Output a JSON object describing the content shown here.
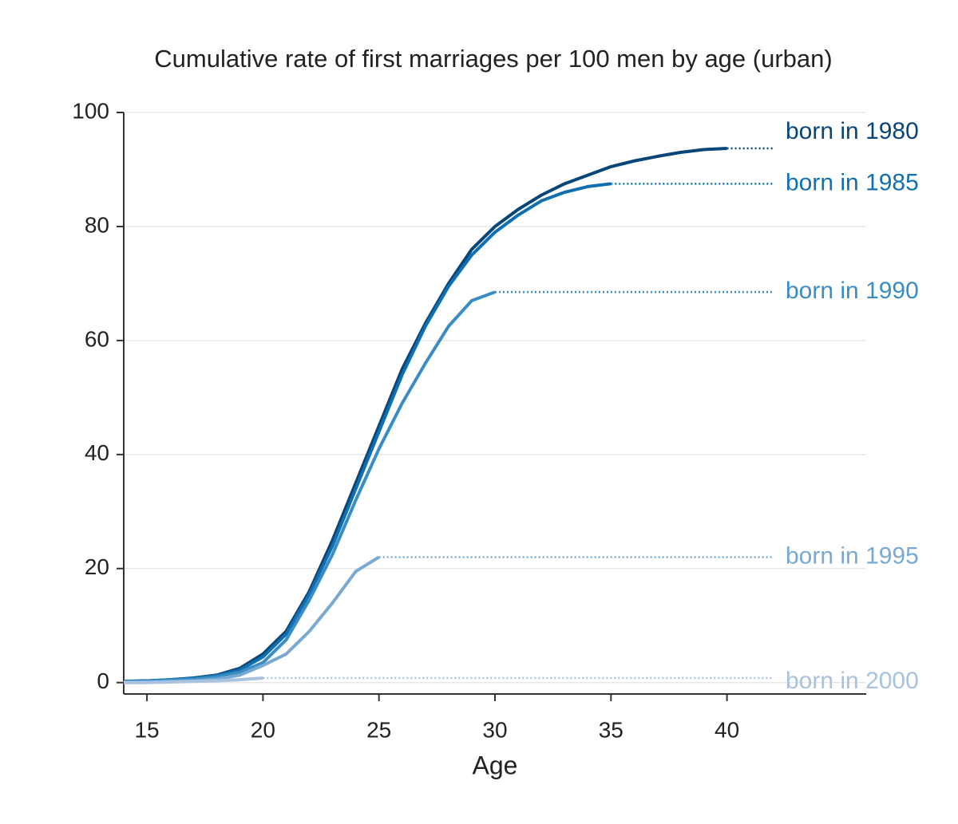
{
  "chart_data": {
    "type": "line",
    "title": "Cumulative rate of first marriages per 100 men by age (urban)",
    "x_label": "Age",
    "x": [
      14,
      15,
      16,
      17,
      18,
      19,
      20,
      21,
      22,
      23,
      24,
      25,
      26,
      27,
      28,
      29,
      30,
      31,
      32,
      33,
      34,
      35,
      36,
      37,
      38,
      39,
      40
    ],
    "series": [
      {
        "name": "born in 1980",
        "color": "#08467a",
        "values": [
          0.2,
          0.3,
          0.5,
          0.8,
          1.3,
          2.5,
          5,
          9,
          16,
          25,
          35,
          45,
          55,
          63,
          70,
          76,
          80,
          83,
          85.5,
          87.5,
          89,
          90.5,
          91.5,
          92.3,
          93,
          93.5,
          93.7
        ]
      },
      {
        "name": "born in 1985",
        "color": "#0f6fb0",
        "values": [
          0.2,
          0.3,
          0.5,
          0.7,
          1.2,
          2.2,
          4.5,
          8.5,
          15.5,
          24,
          34,
          44,
          54,
          62.5,
          69.5,
          75,
          79,
          82,
          84.5,
          86,
          87,
          87.5,
          null,
          null,
          null,
          null,
          null
        ]
      },
      {
        "name": "born in 1990",
        "color": "#3a8cc4",
        "values": [
          0.1,
          0.2,
          0.4,
          0.6,
          1,
          1.8,
          3.5,
          7.5,
          14.5,
          22.5,
          32,
          41,
          49,
          56,
          62.5,
          67,
          68.5,
          null,
          null,
          null,
          null,
          null,
          null,
          null,
          null,
          null,
          null
        ]
      },
      {
        "name": "born in 1995",
        "color": "#78a9d2",
        "values": [
          0.1,
          0.1,
          0.2,
          0.3,
          0.6,
          1.3,
          3,
          5,
          9,
          14,
          19.5,
          22,
          null,
          null,
          null,
          null,
          null,
          null,
          null,
          null,
          null,
          null,
          null,
          null,
          null,
          null,
          null
        ]
      },
      {
        "name": "born in 2000",
        "color": "#a8c2e0",
        "values": [
          0,
          0,
          0.1,
          0.2,
          0.3,
          0.5,
          0.8,
          null,
          null,
          null,
          null,
          null,
          null,
          null,
          null,
          null,
          null,
          null,
          null,
          null,
          null,
          null,
          null,
          null,
          null,
          null,
          null
        ]
      }
    ],
    "xlim": [
      14,
      46
    ],
    "xticks": [
      15,
      20,
      25,
      30,
      35,
      40
    ],
    "ylim": [
      -2,
      100
    ],
    "yticks": [
      0,
      20,
      40,
      60,
      80,
      100
    ],
    "grid": true
  }
}
